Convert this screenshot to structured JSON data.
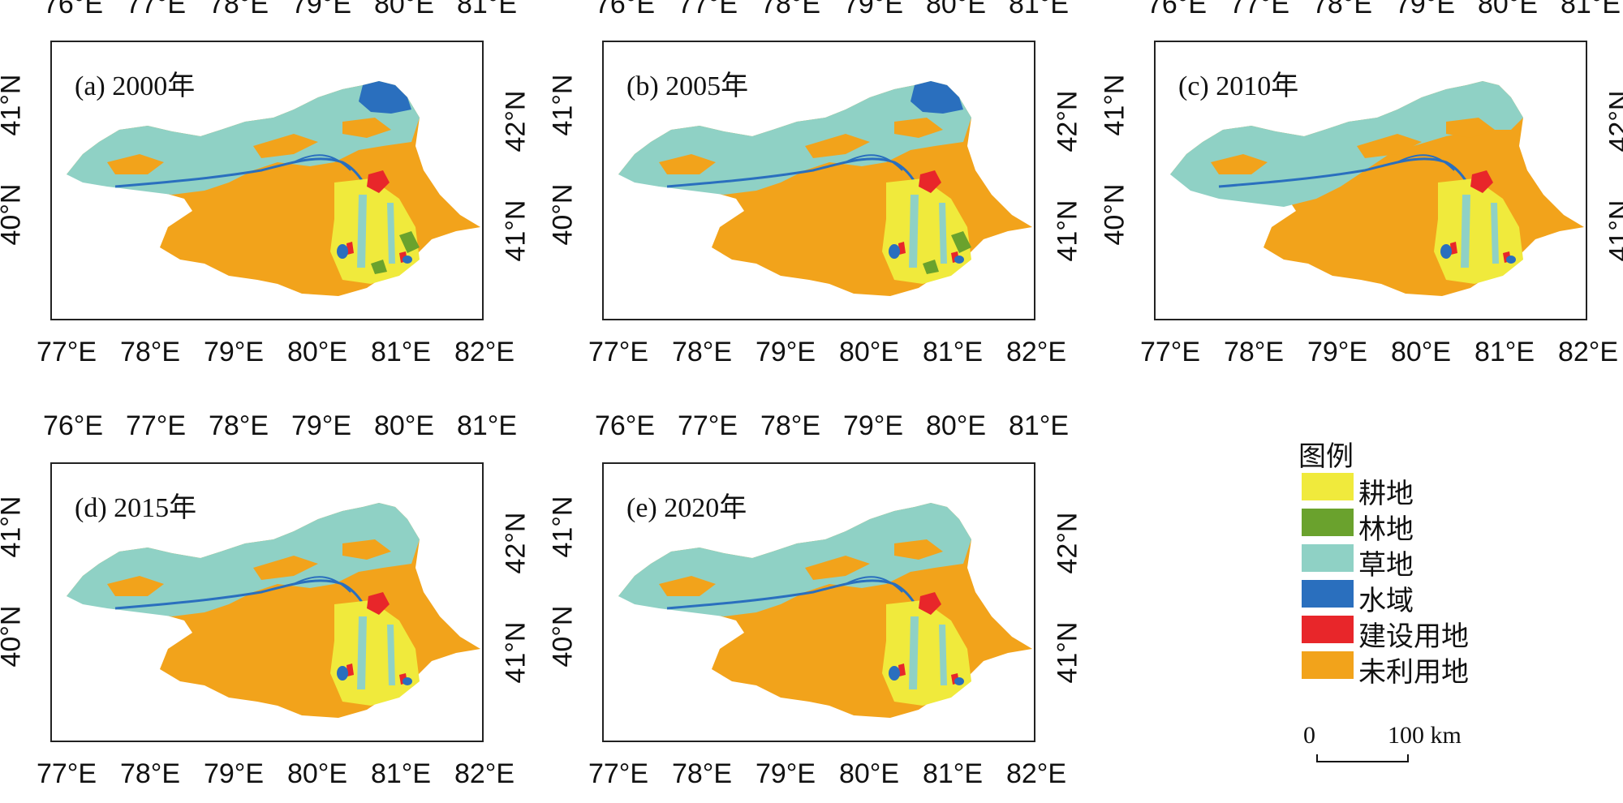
{
  "panels": [
    {
      "label": "(a) 2000年",
      "variant": "a"
    },
    {
      "label": "(b) 2005年",
      "variant": "a"
    },
    {
      "label": "(c) 2010年",
      "variant": "c"
    },
    {
      "label": "(d) 2015年",
      "variant": "d"
    },
    {
      "label": "(e) 2020年",
      "variant": "d"
    }
  ],
  "axes": {
    "top_ticks": [
      "76°E",
      "77°E",
      "78°E",
      "79°E",
      "80°E",
      "81°E"
    ],
    "bottom_ticks": [
      "77°E",
      "78°E",
      "79°E",
      "80°E",
      "81°E",
      "82°E"
    ],
    "left_ticks": [
      "41°N",
      "40°N"
    ],
    "right_ticks": [
      "42°N",
      "41°N"
    ]
  },
  "legend": {
    "title": "图例",
    "items": [
      {
        "label": "耕地",
        "color": "#f0ea3c"
      },
      {
        "label": "林地",
        "color": "#6aa22d"
      },
      {
        "label": "草地",
        "color": "#8fd1c5"
      },
      {
        "label": "水域",
        "color": "#2a6fbe"
      },
      {
        "label": "建设用地",
        "color": "#e8262a"
      },
      {
        "label": "未利用地",
        "color": "#f2a31b"
      }
    ]
  },
  "scale_bar": {
    "zero": "0",
    "end": "100 km"
  }
}
